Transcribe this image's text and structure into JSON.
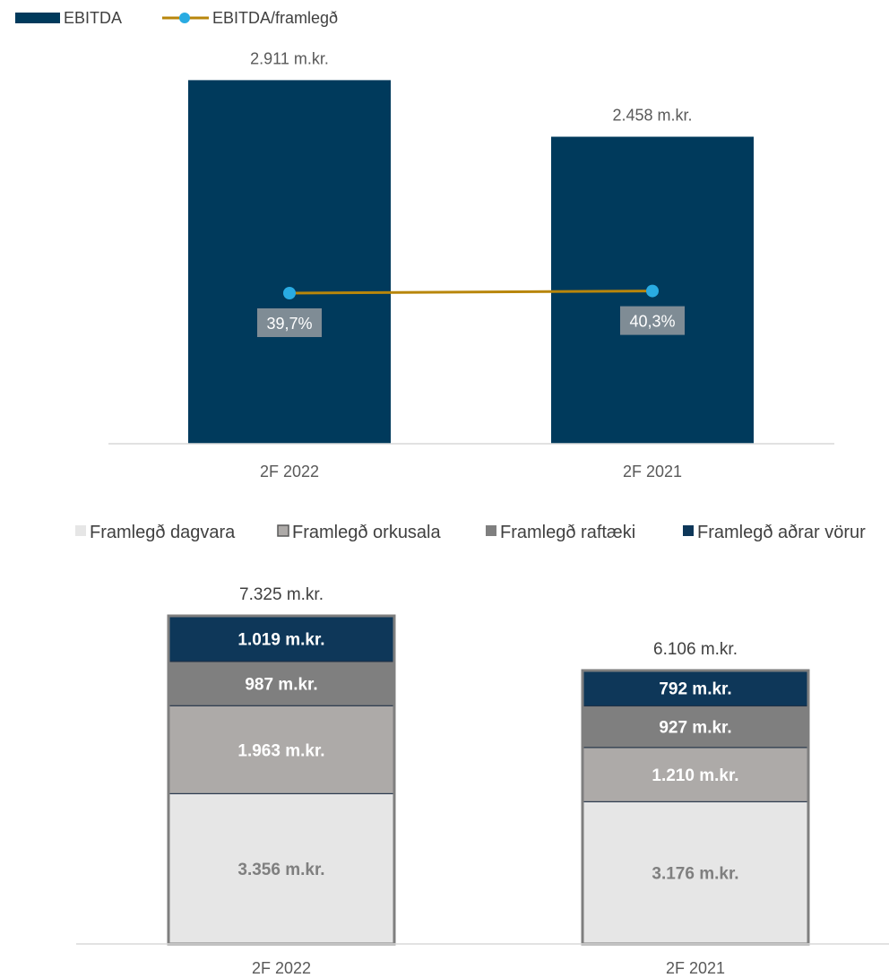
{
  "chart_data": [
    {
      "type": "bar",
      "categories": [
        "2F 2022",
        "2F 2021"
      ],
      "series": [
        {
          "name": "EBITDA",
          "values": [
            2911,
            2458
          ],
          "labels": [
            "2.911 m.kr.",
            "2.458 m.kr."
          ]
        },
        {
          "name": "EBITDA/framlegð",
          "type": "line",
          "values": [
            39.7,
            40.3
          ],
          "labels": [
            "39,7%",
            "40,3%"
          ]
        }
      ],
      "ylim": [
        0,
        3000
      ],
      "legend": "top-left",
      "colors": {
        "bar": "#003a5c",
        "line": "#b8860b",
        "marker": "#29abe2",
        "label_box": "#7f8c95"
      }
    },
    {
      "type": "bar",
      "stacked": true,
      "categories": [
        "2F 2022",
        "2F 2021"
      ],
      "series": [
        {
          "name": "Framlegð dagvara",
          "values": [
            3356,
            3176
          ],
          "labels": [
            "3.356 m.kr.",
            "3.176 m.kr."
          ],
          "color": "#e6e6e6",
          "text_color": "#7f7f7f"
        },
        {
          "name": "Framlegð orkusala",
          "values": [
            1963,
            1210
          ],
          "labels": [
            "1.963 m.kr.",
            "1.210 m.kr."
          ],
          "color": "#adaaa8",
          "text_color": "#ffffff"
        },
        {
          "name": "Framlegð raftæki",
          "values": [
            987,
            927
          ],
          "labels": [
            "987 m.kr.",
            "927 m.kr."
          ],
          "color": "#7f7f7f",
          "text_color": "#ffffff"
        },
        {
          "name": "Framlegð aðrar vörur",
          "values": [
            1019,
            792
          ],
          "labels": [
            "1.019 m.kr.",
            "792 m.kr."
          ],
          "color": "#0e3759",
          "text_color": "#ffffff"
        }
      ],
      "totals": [
        7325,
        6106
      ],
      "total_labels": [
        "7.325 m.kr.",
        "6.106 m.kr."
      ],
      "ylim": [
        0,
        7325
      ],
      "legend": "top"
    }
  ]
}
